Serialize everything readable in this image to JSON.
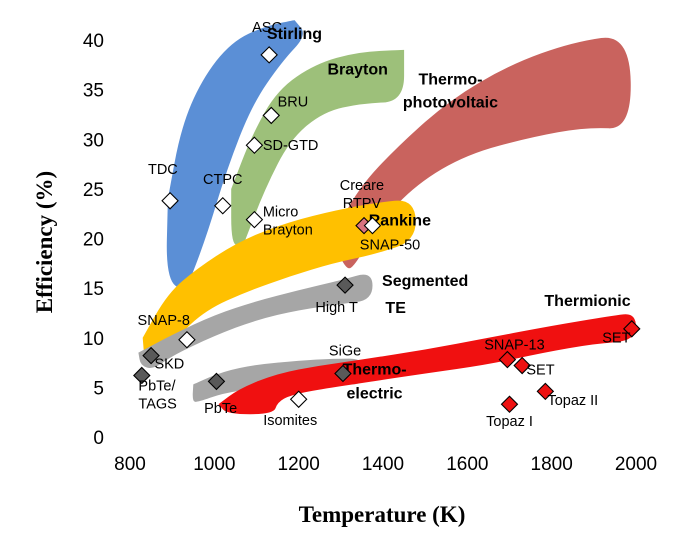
{
  "chart_data": {
    "type": "scatter",
    "xlabel": "Temperature (K)",
    "ylabel": "Efficiency (%)",
    "xlim": [
      800,
      2000
    ],
    "ylim": [
      0,
      40
    ],
    "xticks": [
      800,
      1000,
      1200,
      1400,
      1600,
      1800,
      2000
    ],
    "yticks": [
      0,
      5,
      10,
      15,
      20,
      25,
      30,
      35,
      40
    ],
    "grid": false,
    "colors": {
      "stirling": "#5b8fd6",
      "brayton": "#9dc07a",
      "tpv": "#c9635e",
      "rankine": "#ffc000",
      "segmented": "#a6a6a6",
      "thermoelectric_band": "#a6a6a6",
      "thermionic": "#f01010",
      "marker_white": "#ffffff",
      "marker_gray": "#595959",
      "marker_light_gray": "#a6a6a6",
      "marker_pink": "#d9737f",
      "marker_red": "#ee1111"
    },
    "bands": [
      {
        "name": "Stirling",
        "color": "stirling",
        "upper": [
          [
            890,
            24
          ],
          [
            920,
            31
          ],
          [
            970,
            36
          ],
          [
            1040,
            39.8
          ],
          [
            1120,
            41.4
          ],
          [
            1190,
            42
          ]
        ],
        "lower": [
          [
            1190,
            42
          ],
          [
            1220,
            40.5
          ],
          [
            1160,
            37.8
          ],
          [
            1090,
            33.5
          ],
          [
            1030,
            27
          ],
          [
            980,
            20
          ],
          [
            930,
            14.5
          ]
        ],
        "left_edge": [
          [
            930,
            14.5
          ],
          [
            885,
            16
          ],
          [
            890,
            24
          ]
        ]
      },
      {
        "name": "Brayton",
        "color": "brayton",
        "upper": [
          [
            1040,
            25
          ],
          [
            1090,
            30.5
          ],
          [
            1150,
            35
          ],
          [
            1240,
            37.6
          ],
          [
            1340,
            38.8
          ],
          [
            1450,
            39
          ]
        ],
        "lower": [
          [
            1450,
            39
          ],
          [
            1450,
            33.8
          ],
          [
            1350,
            33.6
          ],
          [
            1260,
            32.8
          ],
          [
            1180,
            30
          ],
          [
            1120,
            25
          ],
          [
            1070,
            19.5
          ]
        ],
        "left_edge": [
          [
            1070,
            19.5
          ],
          [
            1040,
            19.2
          ],
          [
            1040,
            25
          ]
        ]
      },
      {
        "name": "Thermophotovoltaic",
        "color": "tpv",
        "upper": [
          [
            1280,
            20
          ],
          [
            1340,
            25
          ],
          [
            1440,
            29.5
          ],
          [
            1560,
            34
          ],
          [
            1700,
            37.5
          ],
          [
            1850,
            39.8
          ],
          [
            1985,
            40.6
          ]
        ],
        "lower": [
          [
            1990,
            31
          ],
          [
            1880,
            31.2
          ],
          [
            1750,
            30.2
          ],
          [
            1600,
            28.5
          ],
          [
            1480,
            25.5
          ],
          [
            1390,
            21.5
          ],
          [
            1330,
            17
          ]
        ],
        "left_edge": [
          [
            1310,
            17
          ],
          [
            1280,
            20
          ]
        ]
      },
      {
        "name": "Rankine",
        "color": "rankine",
        "upper": [
          [
            830,
            10
          ],
          [
            890,
            14.5
          ],
          [
            960,
            17
          ],
          [
            1050,
            19.5
          ],
          [
            1150,
            21.3
          ],
          [
            1260,
            22.6
          ],
          [
            1380,
            23.6
          ],
          [
            1475,
            24
          ]
        ],
        "lower": [
          [
            1480,
            19.8
          ],
          [
            1380,
            18.4
          ],
          [
            1280,
            17.5
          ],
          [
            1180,
            16.2
          ],
          [
            1080,
            14.7
          ],
          [
            980,
            12.8
          ],
          [
            910,
            10
          ],
          [
            855,
            7
          ]
        ],
        "left_edge": [
          [
            835,
            7.5
          ],
          [
            830,
            10
          ]
        ]
      },
      {
        "name": "Segmented TE",
        "color": "segmented",
        "upper": [
          [
            820,
            8.5
          ],
          [
            900,
            10.3
          ],
          [
            1000,
            12.3
          ],
          [
            1100,
            13.7
          ],
          [
            1200,
            14.8
          ],
          [
            1300,
            15.8
          ],
          [
            1375,
            16.7
          ]
        ],
        "lower": [
          [
            1375,
            13.8
          ],
          [
            1300,
            13.4
          ],
          [
            1200,
            12.8
          ],
          [
            1100,
            11.8
          ],
          [
            1000,
            10.2
          ],
          [
            900,
            8.2
          ],
          [
            855,
            6.8
          ]
        ],
        "left_edge": [
          [
            825,
            7.2
          ],
          [
            820,
            8.5
          ]
        ]
      },
      {
        "name": "Thermoelectric",
        "color": "thermoelectric_band",
        "upper": [
          [
            950,
            5.3
          ],
          [
            1020,
            6.6
          ],
          [
            1100,
            7.3
          ],
          [
            1200,
            7.7
          ],
          [
            1280,
            7.9
          ],
          [
            1360,
            7.9
          ]
        ],
        "lower": [
          [
            1360,
            5.2
          ],
          [
            1280,
            5.4
          ],
          [
            1200,
            5.3
          ],
          [
            1100,
            4.9
          ],
          [
            1020,
            4.4
          ],
          [
            960,
            3.5
          ]
        ],
        "left_edge": [
          [
            948,
            3.6
          ],
          [
            950,
            5.3
          ]
        ]
      },
      {
        "name": "Thermionic",
        "color": "thermionic",
        "upper": [
          [
            1010,
            3.3
          ],
          [
            1060,
            4.9
          ],
          [
            1150,
            6.4
          ],
          [
            1250,
            7.2
          ],
          [
            1350,
            7.8
          ],
          [
            1500,
            8.8
          ],
          [
            1650,
            10
          ],
          [
            1800,
            11.2
          ],
          [
            1940,
            12.2
          ],
          [
            2000,
            12.5
          ]
        ],
        "lower": [
          [
            2000,
            9.7
          ],
          [
            1900,
            9.4
          ],
          [
            1780,
            8.5
          ],
          [
            1650,
            7.3
          ],
          [
            1500,
            6.4
          ],
          [
            1360,
            5.5
          ],
          [
            1250,
            4.8
          ],
          [
            1180,
            4.2
          ],
          [
            1150,
            3.5
          ],
          [
            1140,
            2.3
          ]
        ],
        "left_edge": [
          [
            1030,
            2.3
          ],
          [
            1010,
            3.3
          ]
        ]
      }
    ],
    "band_labels": [
      {
        "text": "Stirling",
        "x": 1190,
        "y": 40.1,
        "anchor": "middle"
      },
      {
        "text": "Brayton",
        "x": 1340,
        "y": 36.5,
        "anchor": "middle"
      },
      {
        "text": "Thermo-",
        "x": 1560,
        "y": 35.5,
        "anchor": "middle"
      },
      {
        "text": "photovoltaic",
        "x": 1560,
        "y": 33.2,
        "anchor": "middle"
      },
      {
        "text": "Rankine",
        "x": 1440,
        "y": 21.3,
        "anchor": "middle"
      },
      {
        "text": "Segmented",
        "x": 1500,
        "y": 15.2,
        "anchor": "middle"
      },
      {
        "text": "TE",
        "x": 1430,
        "y": 12.5,
        "anchor": "middle"
      },
      {
        "text": "Thermo-",
        "x": 1380,
        "y": 6.3,
        "anchor": "middle"
      },
      {
        "text": "electric",
        "x": 1380,
        "y": 3.9,
        "anchor": "middle"
      },
      {
        "text": "Thermionic",
        "x": 1885,
        "y": 13.2,
        "anchor": "middle"
      }
    ],
    "points": [
      {
        "name": "ASC",
        "x": 1130,
        "y": 38.5,
        "color": "marker_white",
        "label": "ASC",
        "lx": 1125,
        "ly": 40.8,
        "anchor": "middle"
      },
      {
        "name": "BRU",
        "x": 1135,
        "y": 32.4,
        "color": "marker_white",
        "label": "BRU",
        "lx": 1150,
        "ly": 33.3,
        "anchor": "start"
      },
      {
        "name": "SD-GTD",
        "x": 1095,
        "y": 29.4,
        "color": "marker_white",
        "label": "SD-GTD",
        "lx": 1115,
        "ly": 28.9,
        "anchor": "start"
      },
      {
        "name": "TDC",
        "x": 895,
        "y": 23.8,
        "color": "marker_white",
        "label": "TDC",
        "lx": 878,
        "ly": 26.5,
        "anchor": "middle"
      },
      {
        "name": "CTPC",
        "x": 1020,
        "y": 23.3,
        "color": "marker_white",
        "label": "CTPC",
        "lx": 1020,
        "ly": 25.5,
        "anchor": "middle"
      },
      {
        "name": "Micro Brayton",
        "x": 1095,
        "y": 21.9,
        "color": "marker_white",
        "label": "Micro",
        "label2": "Brayton",
        "lx": 1115,
        "ly": 22.2,
        "anchor": "start"
      },
      {
        "name": "Creare RTPV",
        "x": 1355,
        "y": 21.3,
        "color": "marker_pink",
        "label": "Creare",
        "label2": "RTPV",
        "lx": 1350,
        "ly": 24.9,
        "anchor": "middle"
      },
      {
        "name": "SNAP-50",
        "x": 1375,
        "y": 21.3,
        "color": "marker_white",
        "label": "SNAP-50",
        "lx": 1345,
        "ly": 18.9,
        "anchor": "start"
      },
      {
        "name": "High T",
        "x": 1310,
        "y": 15.3,
        "color": "marker_gray",
        "label": "High T",
        "lx": 1290,
        "ly": 12.6,
        "anchor": "middle"
      },
      {
        "name": "SNAP-8",
        "x": 935,
        "y": 9.8,
        "color": "marker_white",
        "label": "SNAP-8",
        "lx": 880,
        "ly": 11.3,
        "anchor": "middle"
      },
      {
        "name": "SKD",
        "x": 850,
        "y": 8.2,
        "color": "marker_gray",
        "label": "SKD",
        "lx": 858,
        "ly": 6.9,
        "anchor": "start"
      },
      {
        "name": "PbTe/TAGS",
        "x": 828,
        "y": 6.2,
        "color": "marker_gray",
        "label": "PbTe/",
        "label2": "TAGS",
        "lx": 820,
        "ly": 4.7,
        "anchor": "start"
      },
      {
        "name": "PbTe",
        "x": 1005,
        "y": 5.6,
        "color": "marker_gray",
        "label": "PbTe",
        "lx": 1015,
        "ly": 2.4,
        "anchor": "middle"
      },
      {
        "name": "SiGe",
        "x": 1305,
        "y": 6.4,
        "color": "marker_gray",
        "label": "SiGe",
        "lx": 1310,
        "ly": 8.2,
        "anchor": "middle"
      },
      {
        "name": "Isomites",
        "x": 1200,
        "y": 3.8,
        "color": "marker_white",
        "label": "Isomites",
        "lx": 1180,
        "ly": 1.2,
        "anchor": "middle"
      },
      {
        "name": "SNAP-13",
        "x": 1695,
        "y": 7.8,
        "color": "marker_red",
        "label": "SNAP-13",
        "lx": 1640,
        "ly": 8.8,
        "anchor": "start"
      },
      {
        "name": "SET",
        "x": 1730,
        "y": 7.2,
        "color": "marker_red",
        "label": "SET",
        "lx": 1740,
        "ly": 6.3,
        "anchor": "start"
      },
      {
        "name": "SET (2000K)",
        "x": 1990,
        "y": 10.9,
        "color": "marker_red",
        "label": "SET",
        "lx": 1920,
        "ly": 9.5,
        "anchor": "start"
      },
      {
        "name": "Topaz I",
        "x": 1700,
        "y": 3.3,
        "color": "marker_red",
        "label": "Topaz I",
        "lx": 1700,
        "ly": 1.1,
        "anchor": "middle"
      },
      {
        "name": "Topaz II",
        "x": 1785,
        "y": 4.6,
        "color": "marker_red",
        "label": "Topaz II",
        "lx": 1790,
        "ly": 3.2,
        "anchor": "start"
      }
    ]
  }
}
